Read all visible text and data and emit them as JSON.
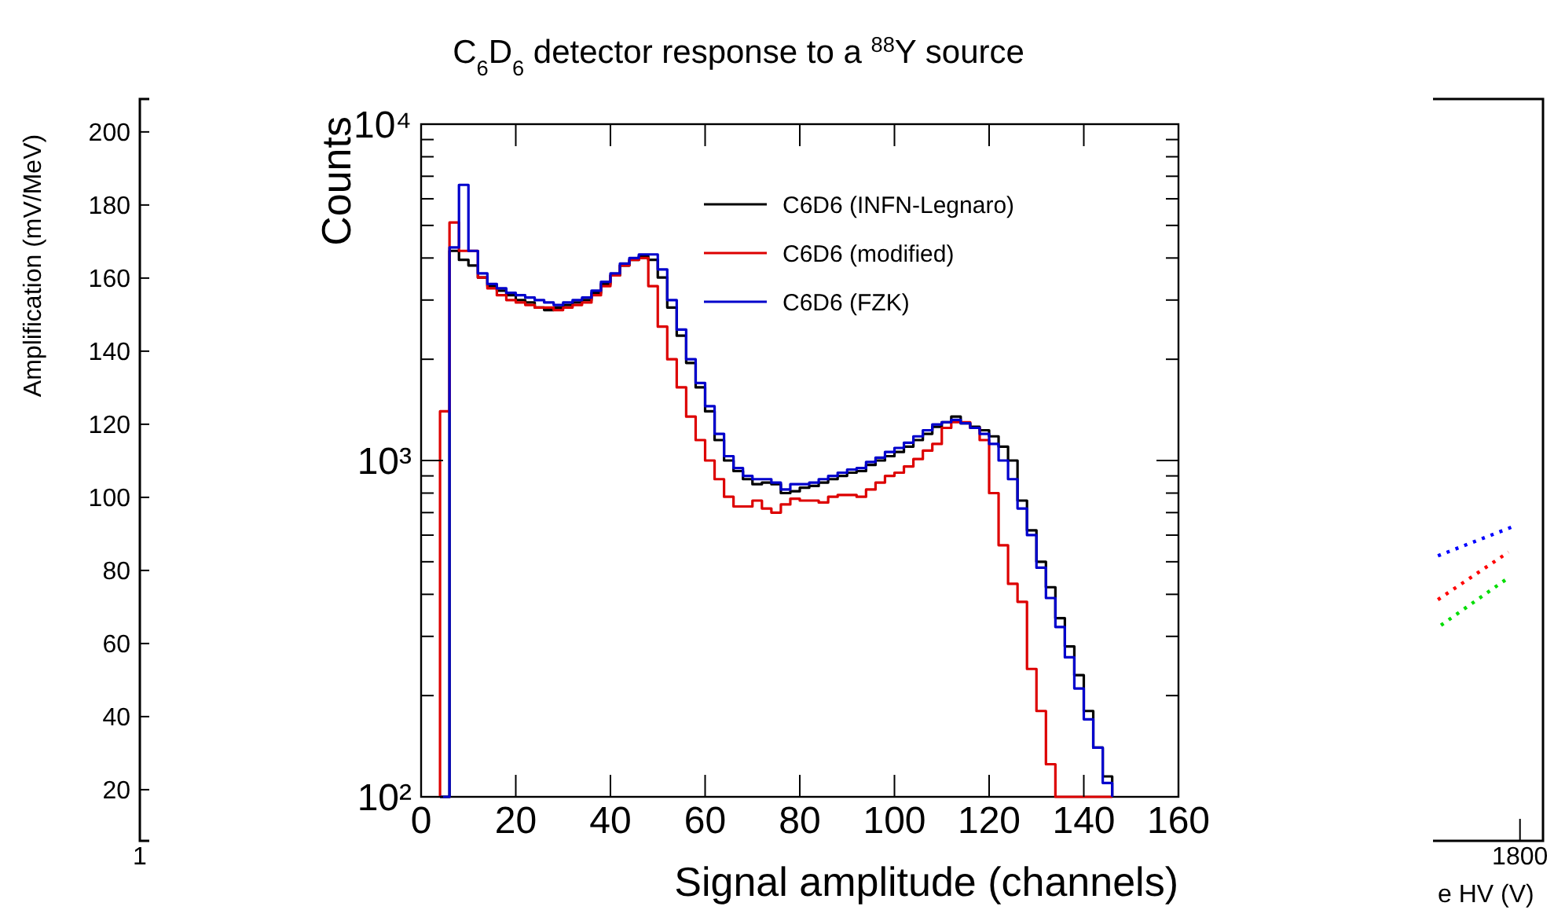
{
  "chart_data": [
    {
      "type": "line",
      "ylabel": "Amplification (mV/MeV)",
      "xlabel": "e HV (V)",
      "xlim": [
        1,
        1830
      ],
      "xticks": [
        1,
        1800
      ],
      "ylim": [
        6,
        209
      ],
      "yticks": [
        20,
        40,
        60,
        80,
        100,
        120,
        140,
        160,
        180,
        200
      ],
      "line_style": "dotted",
      "series": [
        {
          "color": "#0000ff",
          "x": [
            1693,
            1791
          ],
          "values": [
            84,
            92
          ]
        },
        {
          "color": "#ff0000",
          "x": [
            1693,
            1785
          ],
          "values": [
            72,
            85
          ]
        },
        {
          "color": "#00dd00",
          "x": [
            1697,
            1785
          ],
          "values": [
            65,
            78
          ]
        }
      ]
    },
    {
      "type": "histogram",
      "title": "C$_{6}$D$_{6}$ detector response to a $^{88}$Y source",
      "xlabel": "Signal amplitude (channels)",
      "ylabel": "Counts",
      "log": "y",
      "legend": "top right",
      "xlim": [
        0,
        160
      ],
      "xticks": [
        0,
        20,
        40,
        60,
        80,
        100,
        120,
        140,
        160
      ],
      "ylim": [
        100,
        10000
      ],
      "yticks": [
        {
          "value": 100,
          "label": "10²"
        },
        {
          "value": 200,
          "label": null
        },
        {
          "value": 300,
          "label": null
        },
        {
          "value": 400,
          "label": null
        },
        {
          "value": 500,
          "label": null
        },
        {
          "value": 600,
          "label": null
        },
        {
          "value": 700,
          "label": null
        },
        {
          "value": 800,
          "label": null
        },
        {
          "value": 900,
          "label": null
        },
        {
          "value": 1000,
          "label": "10³"
        },
        {
          "value": 2000,
          "label": null
        },
        {
          "value": 3000,
          "label": null
        },
        {
          "value": 4000,
          "label": null
        },
        {
          "value": 5000,
          "label": null
        },
        {
          "value": 6000,
          "label": null
        },
        {
          "value": 7000,
          "label": null
        },
        {
          "value": 8000,
          "label": null
        },
        {
          "value": 9000,
          "label": null
        },
        {
          "value": 10000,
          "label": "10⁴"
        }
      ],
      "bins": [
        4,
        6,
        8,
        10,
        12,
        14,
        16,
        18,
        20,
        22,
        24,
        26,
        28,
        30,
        32,
        34,
        36,
        38,
        40,
        42,
        44,
        46,
        48,
        50,
        52,
        54,
        56,
        58,
        60,
        62,
        64,
        66,
        68,
        70,
        72,
        74,
        76,
        78,
        80,
        82,
        84,
        86,
        88,
        90,
        92,
        94,
        96,
        98,
        100,
        102,
        104,
        106,
        108,
        110,
        112,
        114,
        116,
        118,
        120,
        122,
        124,
        126,
        128,
        130,
        132,
        134,
        136,
        138,
        140,
        142,
        144,
        146
      ],
      "series": [
        {
          "name": "C6D6 (INFN-Legnaro)",
          "color": "#000000",
          "values": [
            null,
            4200,
            3950,
            3800,
            3500,
            3300,
            3200,
            3100,
            3000,
            2950,
            2850,
            2800,
            2850,
            2900,
            2950,
            3000,
            3150,
            3350,
            3550,
            3800,
            3950,
            4050,
            3950,
            3500,
            2850,
            2350,
            1950,
            1650,
            1400,
            1150,
            1000,
            930,
            880,
            850,
            860,
            850,
            800,
            810,
            830,
            840,
            860,
            880,
            900,
            920,
            930,
            970,
            1000,
            1030,
            1060,
            1100,
            1150,
            1200,
            1260,
            1300,
            1350,
            1290,
            1260,
            1230,
            1180,
            1100,
            1000,
            760,
            620,
            500,
            420,
            340,
            280,
            230,
            180,
            140,
            115
          ]
        },
        {
          "name": "C6D6 (modified)",
          "color": "#dd0000",
          "values": [
            1400,
            5100,
            4200,
            4200,
            3500,
            3250,
            3100,
            3000,
            2950,
            2900,
            2850,
            2850,
            2800,
            2850,
            2900,
            2950,
            3100,
            3300,
            3550,
            3800,
            3950,
            4000,
            3300,
            2500,
            2000,
            1650,
            1350,
            1150,
            1000,
            880,
            780,
            730,
            730,
            760,
            720,
            700,
            740,
            770,
            760,
            760,
            750,
            780,
            790,
            790,
            780,
            820,
            860,
            900,
            920,
            960,
            1010,
            1070,
            1120,
            1250,
            1300,
            1300,
            1250,
            1150,
            800,
            560,
            430,
            380,
            240,
            180,
            125,
            null,
            null,
            null,
            null,
            null,
            null
          ]
        },
        {
          "name": "C6D6 (FZK)",
          "color": "#0000cc",
          "values": [
            null,
            4300,
            6600,
            4200,
            3600,
            3350,
            3250,
            3150,
            3100,
            3050,
            3000,
            2950,
            2900,
            2950,
            3000,
            3050,
            3200,
            3400,
            3600,
            3850,
            4000,
            4100,
            4100,
            3700,
            3000,
            2450,
            2000,
            1700,
            1450,
            1200,
            1030,
            950,
            900,
            880,
            880,
            860,
            820,
            850,
            850,
            860,
            880,
            900,
            920,
            940,
            950,
            990,
            1020,
            1060,
            1090,
            1130,
            1180,
            1230,
            1280,
            1300,
            1320,
            1290,
            1250,
            1200,
            1120,
            1000,
            880,
            720,
            600,
            480,
            390,
            320,
            260,
            210,
            170,
            140,
            110
          ]
        }
      ]
    }
  ]
}
